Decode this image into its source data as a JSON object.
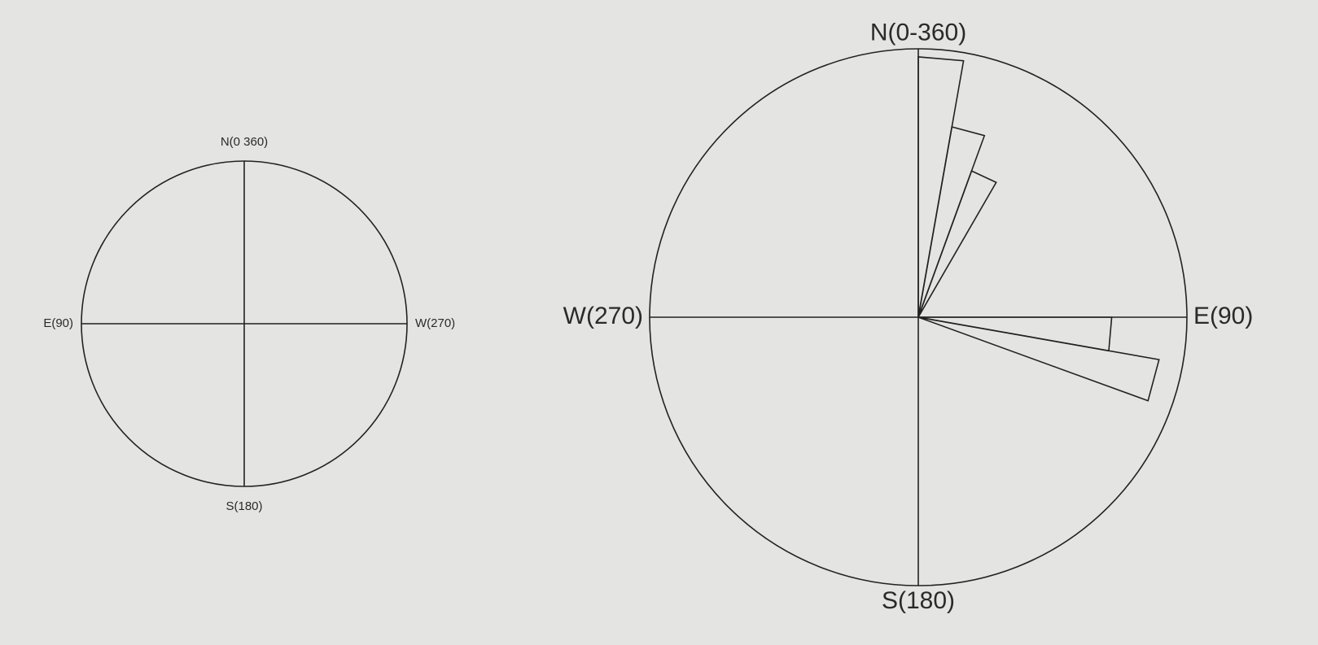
{
  "chart_data": [
    {
      "type": "rose",
      "direction": "counterclockwise",
      "direction_labels": [
        {
          "label": "N(0 360)",
          "angle": 0
        },
        {
          "label": "E(90)",
          "angle": 90
        },
        {
          "label": "S(180)",
          "angle": 180
        },
        {
          "label": "W(270)",
          "angle": 270
        }
      ],
      "rlim": [
        0,
        1
      ],
      "petals": []
    },
    {
      "type": "rose",
      "direction": "clockwise",
      "direction_labels": [
        {
          "label": "N(0-360)",
          "angle": 0
        },
        {
          "label": "E(90)",
          "angle": 90
        },
        {
          "label": "S(180)",
          "angle": 180
        },
        {
          "label": "W(270)",
          "angle": 270
        }
      ],
      "rlim": [
        0,
        1
      ],
      "petals": [
        {
          "start": 0,
          "end": 10,
          "value": 0.97
        },
        {
          "start": 10,
          "end": 20,
          "value": 0.72
        },
        {
          "start": 20,
          "end": 30,
          "value": 0.58
        },
        {
          "start": 90,
          "end": 100,
          "value": 0.72
        },
        {
          "start": 100,
          "end": 110,
          "value": 0.91
        }
      ]
    }
  ]
}
